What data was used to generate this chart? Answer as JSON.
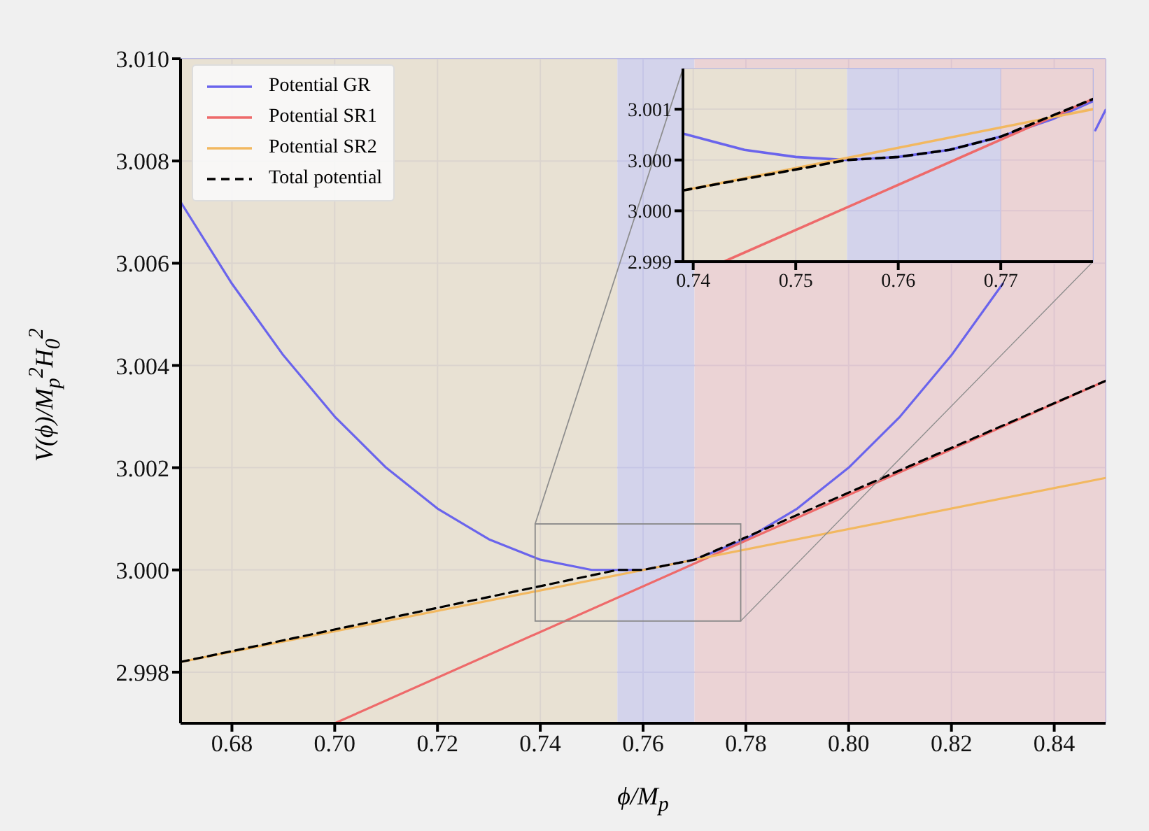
{
  "chart_data": [
    {
      "type": "line",
      "xlabel": "ϕ/M$_{p}$",
      "ylabel": "V(ϕ)/M$_{p}$$^{2}$H$_{0}$$^{2}$",
      "xlim": [
        0.67,
        0.85
      ],
      "ylim": [
        2.997,
        3.01
      ],
      "xticks": [
        0.68,
        {
          "value": 0.7,
          "label": "0.70"
        },
        0.72,
        0.74,
        0.76,
        0.78,
        {
          "value": 0.8,
          "label": "0.80"
        },
        0.82,
        0.84
      ],
      "yticks": [
        2.998,
        {
          "value": 3.0,
          "label": "3.000"
        },
        3.002,
        3.004,
        3.006,
        3.008,
        {
          "value": 3.01,
          "label": "3.010"
        }
      ],
      "grid": true,
      "legend": "top left",
      "marker": "none",
      "bands": [
        {
          "axis": "x",
          "from": 0.67,
          "to": 0.755,
          "color": "#e3dac9"
        },
        {
          "axis": "x",
          "from": 0.755,
          "to": 0.77,
          "color": "#c9c9e6"
        },
        {
          "axis": "x",
          "from": 0.77,
          "to": 0.85,
          "color": "#e6c9cc"
        }
      ],
      "series": [
        {
          "name": "Potential GR",
          "color": "#6a64ec",
          "x": [
            0.67,
            0.68,
            0.69,
            0.7,
            0.71,
            0.72,
            0.73,
            0.74,
            0.75,
            0.755,
            0.76,
            0.77,
            0.78,
            0.79,
            0.8,
            0.81,
            0.82,
            0.83,
            0.84,
            0.848,
            0.85
          ],
          "values": [
            3.0072,
            3.0056,
            3.0042,
            3.003,
            3.002,
            3.0012,
            3.0006,
            3.0002,
            3.0,
            3.0,
            3.0,
            3.0002,
            3.0006,
            3.0012,
            3.002,
            3.003,
            3.0042,
            3.0056,
            null,
            3.0086,
            3.009
          ]
        },
        {
          "name": "Potential SR1",
          "color": "#ee6a6a",
          "x": [
            0.7,
            0.85
          ],
          "values": [
            2.997,
            3.0037
          ]
        },
        {
          "name": "Potential SR2",
          "color": "#f2b860",
          "x": [
            0.67,
            0.85
          ],
          "values": [
            2.9982,
            3.0018
          ]
        },
        {
          "name": "Total potential",
          "color": "#000000",
          "line_style": "dashed",
          "x": [
            0.67,
            0.755,
            0.76,
            0.765,
            0.77,
            0.85
          ],
          "values": [
            2.9982,
            3.0,
            3.0,
            3.0001,
            3.0002,
            3.0037
          ]
        }
      ]
    },
    {
      "type": "line",
      "xlim": [
        0.739,
        0.779
      ],
      "ylim": [
        2.999,
        3.0009
      ],
      "xticks": [
        0.74,
        0.75,
        0.76,
        0.77
      ],
      "yticks": [
        2.999,
        {
          "value": 2.9995,
          "label": "3.000"
        },
        {
          "value": 3.0,
          "label": "3.000"
        },
        {
          "value": 3.0005,
          "label": "3.001"
        }
      ],
      "grid": true,
      "marker": "none",
      "bands": [
        {
          "axis": "x",
          "from": 0.739,
          "to": 0.755,
          "color": "#e3dac9"
        },
        {
          "axis": "x",
          "from": 0.755,
          "to": 0.77,
          "color": "#c9c9e6"
        },
        {
          "axis": "x",
          "from": 0.77,
          "to": 0.779,
          "color": "#e6c9cc"
        }
      ],
      "series": [
        {
          "color": "#6a64ec",
          "x": [
            0.739,
            0.745,
            0.75,
            0.755,
            0.76,
            0.765,
            0.77,
            0.775,
            0.779
          ],
          "values": [
            3.00026,
            3.0001,
            3.00003,
            3.0,
            3.00003,
            3.0001,
            3.00023,
            3.0004,
            3.00058
          ]
        },
        {
          "color": "#ee6a6a",
          "x": [
            0.743,
            0.779
          ],
          "values": [
            2.999,
            3.0006
          ]
        },
        {
          "color": "#f2b860",
          "x": [
            0.739,
            0.779
          ],
          "values": [
            2.9997,
            3.0005
          ]
        },
        {
          "color": "#000000",
          "line_style": "dashed",
          "x": [
            0.739,
            0.755,
            0.76,
            0.765,
            0.77,
            0.779
          ],
          "values": [
            2.9997,
            3.0,
            3.00003,
            3.0001,
            3.00023,
            3.0006
          ]
        }
      ]
    }
  ]
}
